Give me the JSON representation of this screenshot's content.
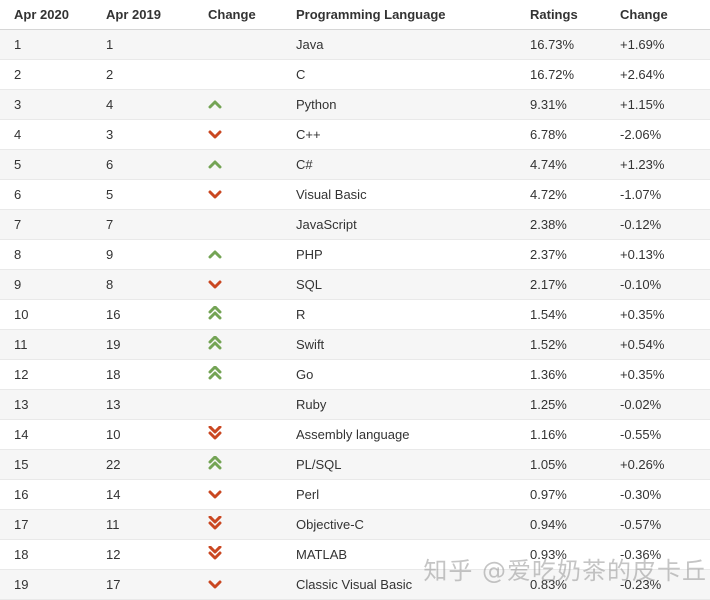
{
  "table": {
    "columns": [
      "Apr 2020",
      "Apr 2019",
      "Change",
      "Programming Language",
      "Ratings",
      "Change"
    ],
    "rows": [
      {
        "pos2020": "1",
        "pos2019": "1",
        "trend": "",
        "language": "Java",
        "ratings": "16.73%",
        "change": "+1.69%"
      },
      {
        "pos2020": "2",
        "pos2019": "2",
        "trend": "",
        "language": "C",
        "ratings": "16.72%",
        "change": "+2.64%"
      },
      {
        "pos2020": "3",
        "pos2019": "4",
        "trend": "up",
        "language": "Python",
        "ratings": "9.31%",
        "change": "+1.15%"
      },
      {
        "pos2020": "4",
        "pos2019": "3",
        "trend": "down",
        "language": "C++",
        "ratings": "6.78%",
        "change": "-2.06%"
      },
      {
        "pos2020": "5",
        "pos2019": "6",
        "trend": "up",
        "language": "C#",
        "ratings": "4.74%",
        "change": "+1.23%"
      },
      {
        "pos2020": "6",
        "pos2019": "5",
        "trend": "down",
        "language": "Visual Basic",
        "ratings": "4.72%",
        "change": "-1.07%"
      },
      {
        "pos2020": "7",
        "pos2019": "7",
        "trend": "",
        "language": "JavaScript",
        "ratings": "2.38%",
        "change": "-0.12%"
      },
      {
        "pos2020": "8",
        "pos2019": "9",
        "trend": "up",
        "language": "PHP",
        "ratings": "2.37%",
        "change": "+0.13%"
      },
      {
        "pos2020": "9",
        "pos2019": "8",
        "trend": "down",
        "language": "SQL",
        "ratings": "2.17%",
        "change": "-0.10%"
      },
      {
        "pos2020": "10",
        "pos2019": "16",
        "trend": "up2",
        "language": "R",
        "ratings": "1.54%",
        "change": "+0.35%"
      },
      {
        "pos2020": "11",
        "pos2019": "19",
        "trend": "up2",
        "language": "Swift",
        "ratings": "1.52%",
        "change": "+0.54%"
      },
      {
        "pos2020": "12",
        "pos2019": "18",
        "trend": "up2",
        "language": "Go",
        "ratings": "1.36%",
        "change": "+0.35%"
      },
      {
        "pos2020": "13",
        "pos2019": "13",
        "trend": "",
        "language": "Ruby",
        "ratings": "1.25%",
        "change": "-0.02%"
      },
      {
        "pos2020": "14",
        "pos2019": "10",
        "trend": "down2",
        "language": "Assembly language",
        "ratings": "1.16%",
        "change": "-0.55%"
      },
      {
        "pos2020": "15",
        "pos2019": "22",
        "trend": "up2",
        "language": "PL/SQL",
        "ratings": "1.05%",
        "change": "+0.26%"
      },
      {
        "pos2020": "16",
        "pos2019": "14",
        "trend": "down",
        "language": "Perl",
        "ratings": "0.97%",
        "change": "-0.30%"
      },
      {
        "pos2020": "17",
        "pos2019": "11",
        "trend": "down2",
        "language": "Objective-C",
        "ratings": "0.94%",
        "change": "-0.57%"
      },
      {
        "pos2020": "18",
        "pos2019": "12",
        "trend": "down2",
        "language": "MATLAB",
        "ratings": "0.93%",
        "change": "-0.36%"
      },
      {
        "pos2020": "19",
        "pos2019": "17",
        "trend": "down",
        "language": "Classic Visual Basic",
        "ratings": "0.83%",
        "change": "-0.23%"
      }
    ]
  },
  "trend_icon_names": {
    "up": "chevron-up-icon",
    "down": "chevron-down-icon",
    "up2": "double-chevron-up-icon",
    "down2": "double-chevron-down-icon"
  },
  "colors": {
    "trend_up": "#74a455",
    "trend_down": "#ca4721",
    "row_alt_background": "#f6f6f6",
    "row_border": "#e9e9e9",
    "header_border": "#d6d6d6",
    "text": "#333333",
    "watermark": "#969696"
  },
  "watermark": {
    "text": "知乎 @爱吃奶茶的皮卡丘"
  }
}
